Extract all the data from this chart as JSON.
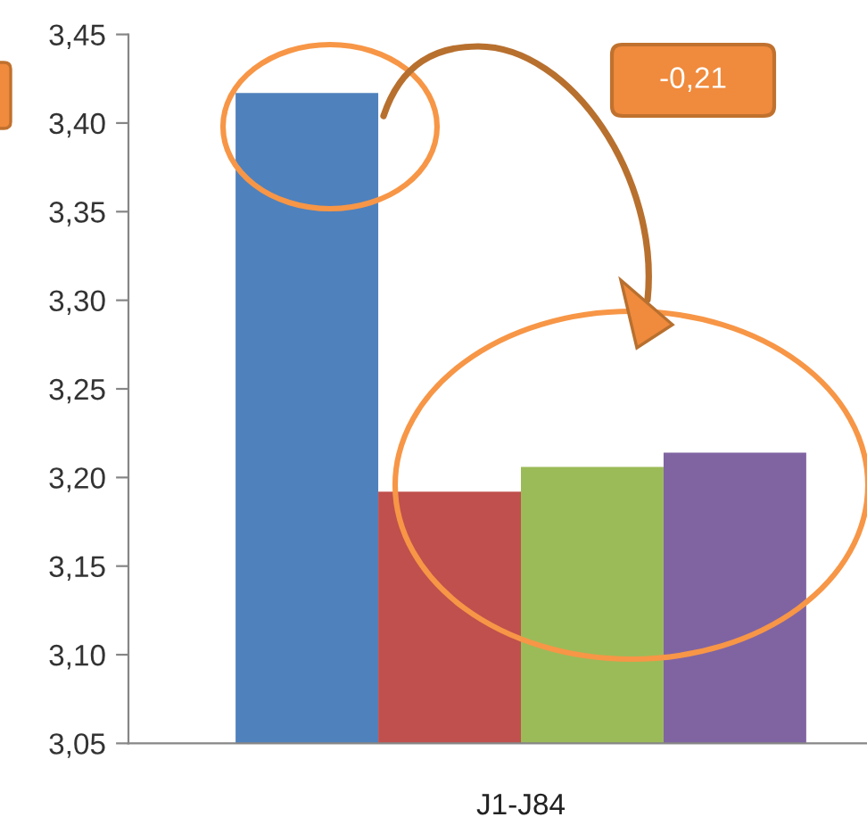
{
  "chart_data": {
    "type": "bar",
    "categories": [
      "J1-J84"
    ],
    "series": [
      {
        "color": "#4f81bd",
        "values": [
          3.417
        ]
      },
      {
        "color": "#c0504d",
        "values": [
          3.192
        ]
      },
      {
        "color": "#9bbb59",
        "values": [
          3.206
        ]
      },
      {
        "color": "#8064a2",
        "values": [
          3.214
        ]
      }
    ],
    "ylim": [
      3.05,
      3.45
    ],
    "yticks": [
      {
        "value": 3.05,
        "label": "3,05"
      },
      {
        "value": 3.1,
        "label": "3,10"
      },
      {
        "value": 3.15,
        "label": "3,15"
      },
      {
        "value": 3.2,
        "label": "3,20"
      },
      {
        "value": 3.25,
        "label": "3,25"
      },
      {
        "value": 3.3,
        "label": "3,30"
      },
      {
        "value": 3.35,
        "label": "3,35"
      },
      {
        "value": 3.4,
        "label": "3,40"
      },
      {
        "value": 3.45,
        "label": "3,45"
      }
    ],
    "annotations": [
      "-0,21"
    ]
  }
}
